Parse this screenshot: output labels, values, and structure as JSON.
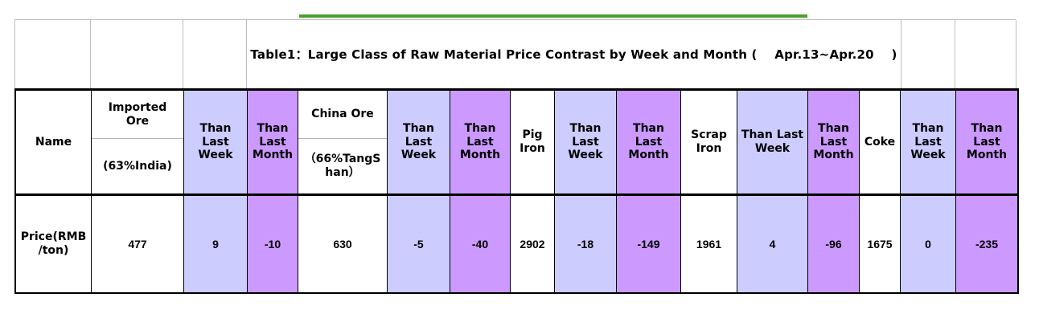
{
  "title": "Table1：Large Class of Raw Material Price Contrast by Week and Month (    Apr.13~Apr.20    )",
  "colors": {
    "accent_green": "#4C9F2F",
    "than_last_week_bg": "#CCCCFF",
    "than_last_month_bg": "#CC99FF"
  },
  "header": {
    "name": "Name",
    "than_week": "Than Last Week",
    "than_month": "Than Last Month",
    "materials": [
      {
        "name": "Imported Ore",
        "spec": "(63%India)"
      },
      {
        "name": "China Ore",
        "spec": "（66%TangShan）"
      },
      {
        "name": "Pig Iron"
      },
      {
        "name": "Scrap Iron"
      },
      {
        "name": "Coke"
      }
    ]
  },
  "row": {
    "label": "Price(RMB/ton)",
    "cells": {
      "imported_ore_price": "477",
      "imported_ore_week": "9",
      "imported_ore_month": "-10",
      "china_ore_price": "630",
      "china_ore_week": "-5",
      "china_ore_month": "-40",
      "pig_iron_price": "2902",
      "pig_iron_week": "-18",
      "pig_iron_month": "-149",
      "scrap_iron_price": "1961",
      "scrap_iron_week": "4",
      "scrap_iron_month": "-96",
      "coke_price": "1675",
      "coke_week": "0",
      "coke_month": "-235"
    }
  }
}
